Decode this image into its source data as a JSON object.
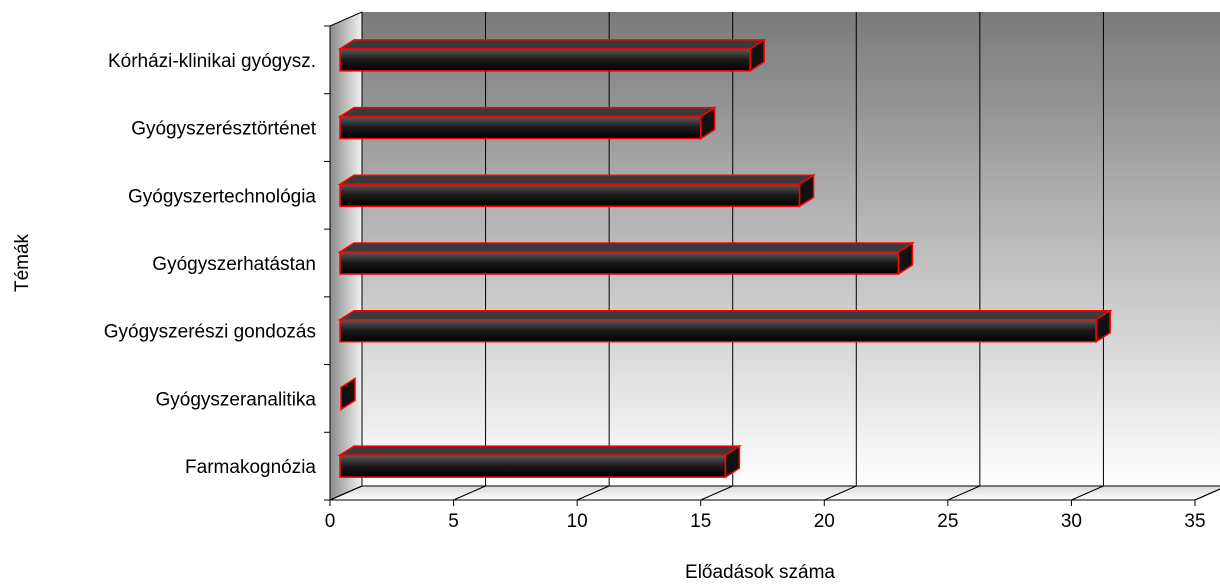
{
  "chart_data": {
    "type": "bar",
    "orientation": "horizontal",
    "style": "3d",
    "categories": [
      "Farmakognózia",
      "Gyógyszeranalitika",
      "Gyógyszerészi gondozás",
      "Gyógyszerhatástan",
      "Gyógyszertechnológia",
      "Gyógyszerésztörténet",
      "Kórházi-klinikai gyógysz."
    ],
    "values": [
      16,
      0,
      31,
      23,
      19,
      15,
      17
    ],
    "xlabel": "Előadások száma",
    "ylabel": "Témák",
    "xlim": [
      0,
      35
    ],
    "xticks": [
      "0",
      "5",
      "10",
      "15",
      "20",
      "25",
      "30",
      "35"
    ],
    "grid": true,
    "legend": "none",
    "colors": {
      "bar_fill": "#1a1a1a",
      "bar_outline": "#ff0000",
      "wall_dark": "#7a7a7a",
      "wall_light": "#ffffff",
      "grid": "#000000"
    }
  }
}
